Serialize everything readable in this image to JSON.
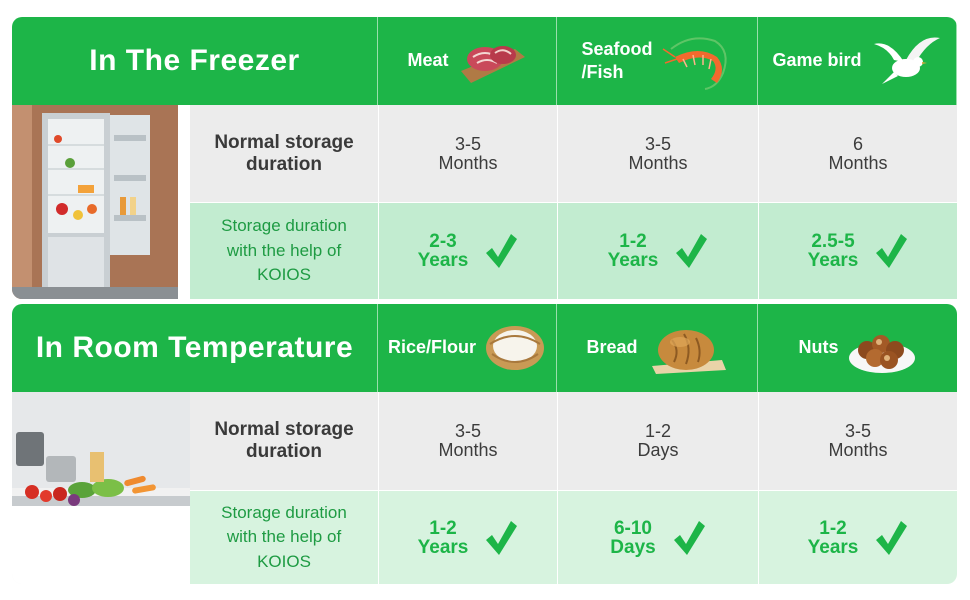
{
  "freezer": {
    "title": "In The Freezer",
    "foods": [
      {
        "label": "Meat",
        "icon": "meat-icon",
        "normal": [
          "3-5",
          "Months"
        ],
        "koios": [
          "2-3",
          "Years"
        ]
      },
      {
        "label": "Seafood\n/Fish",
        "icon": "shrimp-icon",
        "normal": [
          "3-5",
          "Months"
        ],
        "koios": [
          "1-2",
          "Years"
        ]
      },
      {
        "label": "Game bird",
        "icon": "bird-icon",
        "normal": [
          "6",
          "Months"
        ],
        "koios": [
          "2.5-5",
          "Years"
        ]
      }
    ],
    "normal_label": "Normal storage\nduration",
    "koios_label": "Storage duration\nwith the help of\nKOIOS",
    "photo": "refrigerator-photo"
  },
  "room": {
    "title": "In Room Temperature",
    "foods": [
      {
        "label": "Rice/Flour",
        "icon": "rice-bowl-icon",
        "normal": [
          "3-5",
          "Months"
        ],
        "koios": [
          "1-2",
          "Years"
        ]
      },
      {
        "label": "Bread",
        "icon": "bread-icon",
        "normal": [
          "1-2",
          "Days"
        ],
        "koios": [
          "6-10",
          "Days"
        ]
      },
      {
        "label": "Nuts",
        "icon": "nuts-icon",
        "normal": [
          "3-5",
          "Months"
        ],
        "koios": [
          "1-2",
          "Years"
        ]
      }
    ],
    "normal_label": "Normal storage\nduration",
    "koios_label": "Storage duration\nwith the help of\nKOIOS",
    "photo": "kitchen-photo"
  },
  "colors": {
    "brand_green": "#1db548",
    "light_green": "#c2ecd0",
    "gray": "#ececec"
  }
}
